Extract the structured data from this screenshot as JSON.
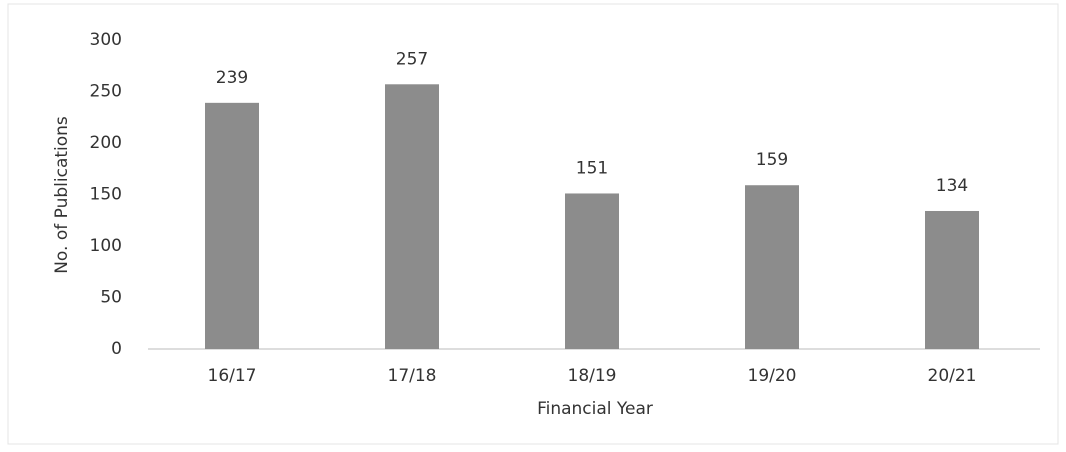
{
  "chart_data": {
    "type": "bar",
    "x_label": "Financial Year",
    "y_label": "No. of Publications",
    "categories": [
      "16/17",
      "17/18",
      "18/19",
      "19/20",
      "20/21"
    ],
    "values": [
      239,
      257,
      151,
      159,
      134
    ],
    "color": "#8c8c8c",
    "ylim": [
      0,
      300
    ],
    "yticks": [
      0,
      50,
      100,
      150,
      200,
      250,
      300
    ],
    "grid": false
  }
}
